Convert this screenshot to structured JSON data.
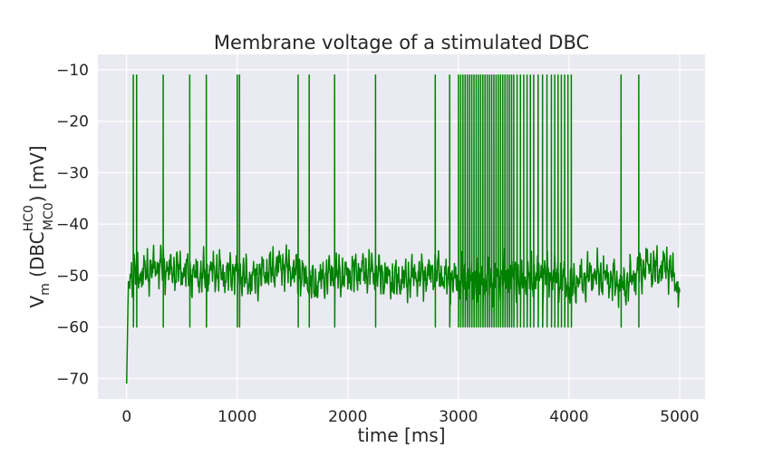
{
  "chart_data": {
    "type": "line",
    "title": "Membrane voltage of a stimulated DBC",
    "xlabel": "time [ms]",
    "ylabel": {
      "prefix": "V",
      "prefix_sub": "m",
      "open": " (DBC",
      "sup": "HC0",
      "sub": "MC0",
      "close": ") [mV]"
    },
    "xlim": [
      -260,
      5230
    ],
    "ylim": [
      -74,
      -7
    ],
    "xticks": [
      0,
      1000,
      2000,
      3000,
      4000,
      5000
    ],
    "xtick_labels": [
      "0",
      "1000",
      "2000",
      "3000",
      "4000",
      "5000"
    ],
    "yticks": [
      -70,
      -60,
      -50,
      -40,
      -30,
      -20,
      -10
    ],
    "ytick_labels": [
      "−70",
      "−60",
      "−50",
      "−40",
      "−30",
      "−20",
      "−10"
    ],
    "grid": true,
    "series": [
      {
        "color": "#008000",
        "t_start": 0,
        "t_end": 5000,
        "initial": -71,
        "baseline_anchors": [
          [
            0,
            -71
          ],
          [
            15,
            -52
          ],
          [
            60,
            -49
          ],
          [
            120,
            -50
          ],
          [
            200,
            -49
          ],
          [
            300,
            -48
          ],
          [
            400,
            -49
          ],
          [
            500,
            -49
          ],
          [
            600,
            -50
          ],
          [
            700,
            -50
          ],
          [
            800,
            -49
          ],
          [
            900,
            -50
          ],
          [
            1000,
            -49
          ],
          [
            1100,
            -51
          ],
          [
            1200,
            -50
          ],
          [
            1300,
            -49
          ],
          [
            1400,
            -48
          ],
          [
            1500,
            -49
          ],
          [
            1600,
            -50
          ],
          [
            1700,
            -52
          ],
          [
            1800,
            -50
          ],
          [
            1900,
            -50
          ],
          [
            2000,
            -50
          ],
          [
            2100,
            -49
          ],
          [
            2200,
            -49
          ],
          [
            2300,
            -50
          ],
          [
            2400,
            -51
          ],
          [
            2500,
            -51
          ],
          [
            2600,
            -50
          ],
          [
            2700,
            -50
          ],
          [
            2800,
            -49
          ],
          [
            2900,
            -51
          ],
          [
            3000,
            -51
          ],
          [
            3100,
            -51
          ],
          [
            3200,
            -51
          ],
          [
            3300,
            -51
          ],
          [
            3400,
            -50
          ],
          [
            3500,
            -50
          ],
          [
            3600,
            -51
          ],
          [
            3700,
            -50
          ],
          [
            3800,
            -50
          ],
          [
            3900,
            -50
          ],
          [
            4000,
            -52
          ],
          [
            4100,
            -51
          ],
          [
            4200,
            -50
          ],
          [
            4300,
            -50
          ],
          [
            4400,
            -51
          ],
          [
            4500,
            -52
          ],
          [
            4600,
            -50
          ],
          [
            4700,
            -48
          ],
          [
            4800,
            -49
          ],
          [
            4900,
            -48
          ],
          [
            5000,
            -53
          ]
        ],
        "spikes": [
          60,
          90,
          330,
          570,
          720,
          1000,
          1020,
          1550,
          1650,
          1880,
          2250,
          2790,
          2920,
          3000,
          3020,
          3040,
          3060,
          3080,
          3100,
          3120,
          3140,
          3160,
          3180,
          3200,
          3220,
          3240,
          3260,
          3280,
          3300,
          3320,
          3340,
          3360,
          3380,
          3400,
          3420,
          3440,
          3460,
          3480,
          3500,
          3530,
          3560,
          3590,
          3620,
          3650,
          3680,
          3720,
          3760,
          3800,
          3840,
          3870,
          3900,
          3930,
          3960,
          3990,
          4020,
          4470,
          4630
        ],
        "spike_peak": -11,
        "spike_trough": -60
      }
    ]
  }
}
